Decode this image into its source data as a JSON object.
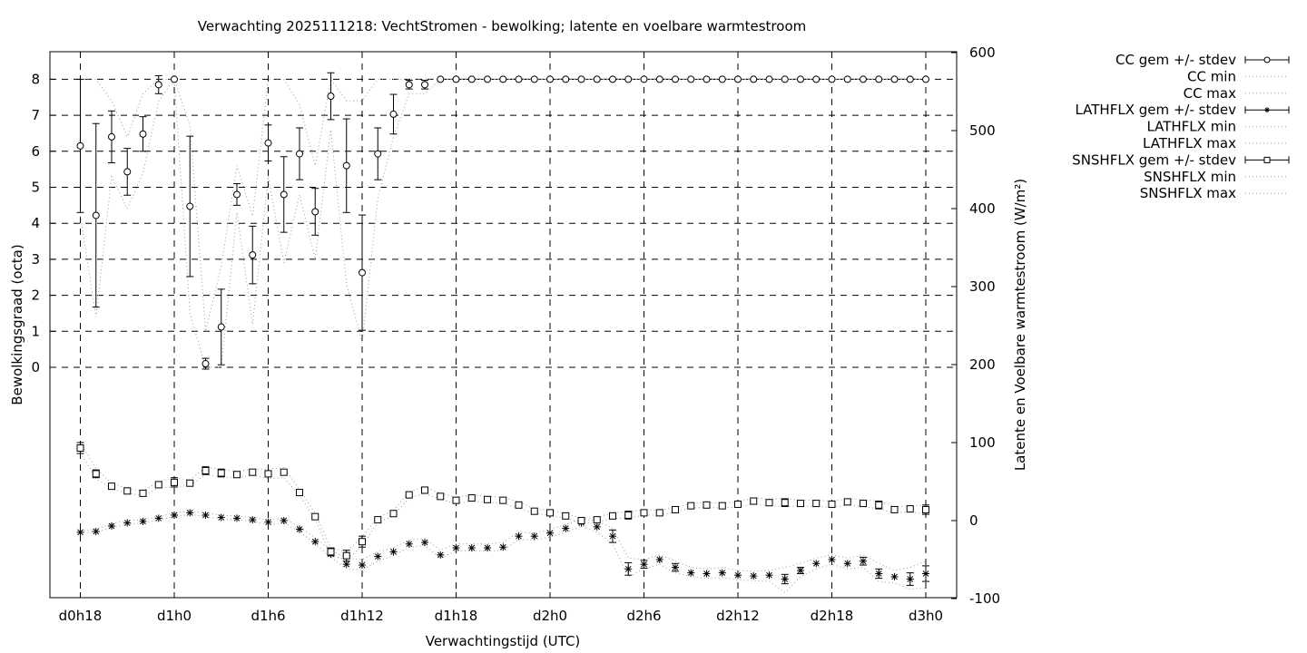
{
  "chart_data": {
    "type": "line",
    "title": "Verwachting 2025111218: VechtStromen - bewolking; latente en voelbare warmtestroom",
    "xlabel": "Verwachtingstijd (UTC)",
    "ylabel": "Bewolkingsgraad (octa)",
    "y2label": "Latente en Voelbare warmtestroom (W/m²)",
    "x_tick_labels": [
      "d0h18",
      "d1h0",
      "d1h6",
      "d1h12",
      "d1h18",
      "d2h0",
      "d2h6",
      "d2h12",
      "d2h18",
      "d3h0"
    ],
    "x_ticks_hours": [
      18,
      24,
      30,
      36,
      42,
      48,
      54,
      60,
      66,
      72
    ],
    "xlim_hours": [
      16,
      74
    ],
    "y_ticks": [
      0,
      1,
      2,
      3,
      4,
      5,
      6,
      7,
      8
    ],
    "y2_ticks": [
      -100,
      0,
      100,
      200,
      300,
      400,
      500,
      600
    ],
    "y2lim": [
      -100,
      600
    ],
    "grid": true,
    "legend_position": "right, outside plot",
    "legend": [
      "CC gem +/- stdev",
      "CC min",
      "CC max",
      "LATHFLX gem +/- stdev",
      "LATHFLX min",
      "LATHFLX max",
      "SNSHFLX gem +/- stdev",
      "SNSHFLX min",
      "SNSHFLX max"
    ],
    "x_hours": [
      18,
      19,
      20,
      21,
      22,
      23,
      24,
      25,
      26,
      27,
      28,
      29,
      30,
      31,
      32,
      33,
      34,
      35,
      36,
      37,
      38,
      39,
      40,
      41,
      42,
      43,
      44,
      45,
      46,
      47,
      48,
      49,
      50,
      51,
      52,
      53,
      54,
      55,
      56,
      57,
      58,
      59,
      60,
      61,
      62,
      63,
      64,
      65,
      66,
      67,
      68,
      69,
      70,
      71,
      72
    ],
    "series": [
      {
        "name": "CC gem +/- stdev",
        "axis": "y",
        "marker": "circle",
        "values": [
          6.15,
          4.22,
          6.4,
          5.43,
          6.48,
          7.85,
          8.0,
          4.47,
          0.1,
          1.12,
          4.8,
          3.12,
          6.23,
          4.8,
          5.93,
          4.32,
          7.53,
          5.6,
          2.63,
          5.93,
          7.03,
          7.85,
          7.85,
          8,
          8,
          8,
          8,
          8,
          8,
          8,
          8,
          8,
          8,
          8,
          8,
          8,
          8,
          8,
          8,
          8,
          8,
          8,
          8,
          8,
          8,
          8,
          8,
          8,
          8,
          8,
          8,
          8,
          8,
          8,
          8
        ],
        "stdev": [
          1.85,
          2.55,
          0.72,
          0.65,
          0.48,
          0.25,
          0.0,
          1.95,
          0.15,
          1.05,
          0.3,
          0.8,
          0.5,
          1.05,
          0.72,
          0.65,
          0.65,
          1.3,
          1.6,
          0.72,
          0.55,
          0.12,
          0.12,
          0,
          0,
          0,
          0,
          0,
          0,
          0,
          0,
          0,
          0,
          0,
          0,
          0,
          0,
          0,
          0,
          0,
          0,
          0,
          0,
          0,
          0,
          0,
          0,
          0,
          0,
          0,
          0,
          0,
          0,
          0,
          0
        ]
      },
      {
        "name": "CC min",
        "axis": "y",
        "values": [
          4.2,
          1.4,
          5.3,
          4.4,
          5.4,
          7.4,
          8,
          1.5,
          0.0,
          0.0,
          4.3,
          1.2,
          5.3,
          2.9,
          4.8,
          3.0,
          6.6,
          2.3,
          0.7,
          4.7,
          6.4,
          7.6,
          7.6,
          8,
          8,
          8,
          8,
          8,
          8,
          8,
          8,
          8,
          8,
          8,
          8,
          8,
          8,
          8,
          8,
          8,
          8,
          8,
          8,
          8,
          8,
          8,
          8,
          8,
          8,
          8,
          8,
          8,
          8,
          8,
          8
        ]
      },
      {
        "name": "CC max",
        "axis": "y",
        "values": [
          8,
          8,
          7.4,
          6.4,
          7.6,
          8,
          8,
          6.7,
          1.0,
          2.8,
          5.6,
          4.2,
          8,
          8,
          7.3,
          5.6,
          8,
          7.4,
          7.4,
          8,
          8,
          8,
          8,
          8,
          8,
          8,
          8,
          8,
          8,
          8,
          8,
          8,
          8,
          8,
          8,
          8,
          8,
          8,
          8,
          8,
          8,
          8,
          8,
          8,
          8,
          8,
          8,
          8,
          8,
          8,
          8,
          8,
          8,
          8,
          8
        ]
      },
      {
        "name": "LATHFLX gem +/- stdev",
        "axis": "y2",
        "marker": "star",
        "values": [
          -15,
          -14,
          -7,
          -3,
          -1,
          3,
          7,
          10,
          7,
          4,
          3,
          1,
          -2,
          0,
          -11,
          -27,
          -43,
          -56,
          -57,
          -46,
          -40,
          -30,
          -28,
          -44,
          -35,
          -35,
          -35,
          -34,
          -20,
          -20,
          -16,
          -10,
          -3,
          -8,
          -20,
          -62,
          -56,
          -50,
          -60,
          -67,
          -68,
          -67,
          -70,
          -71,
          -70,
          -75,
          -64,
          -55,
          -50,
          -55,
          -52,
          -68,
          -72,
          -75,
          -68
        ],
        "stdev": [
          0,
          0,
          0,
          0,
          0,
          0,
          0,
          0,
          0,
          0,
          0,
          0,
          0,
          0,
          0,
          0,
          0,
          0,
          0,
          0,
          0,
          0,
          0,
          0,
          0,
          0,
          0,
          0,
          0,
          0,
          0,
          0,
          0,
          0,
          8,
          8,
          5,
          0,
          5,
          0,
          0,
          0,
          0,
          0,
          0,
          6,
          4,
          0,
          0,
          0,
          5,
          6,
          0,
          8,
          10
        ]
      },
      {
        "name": "LATHFLX min",
        "axis": "y2",
        "values": [
          -15,
          -15,
          -9,
          -5,
          -3,
          1,
          5,
          8,
          5,
          2,
          1,
          -1,
          -5,
          -3,
          -14,
          -30,
          -47,
          -62,
          -63,
          -52,
          -45,
          -34,
          -32,
          -48,
          -39,
          -39,
          -39,
          -38,
          -24,
          -25,
          -21,
          -15,
          -7,
          -15,
          -30,
          -72,
          -62,
          -56,
          -67,
          -72,
          -74,
          -73,
          -76,
          -77,
          -78,
          -92,
          -72,
          -62,
          -56,
          -62,
          -60,
          -78,
          -80,
          -88,
          -86
        ]
      },
      {
        "name": "LATHFLX max",
        "axis": "y2",
        "values": [
          -13,
          -11,
          -4,
          0,
          1,
          5,
          10,
          12,
          10,
          7,
          6,
          4,
          1,
          3,
          -8,
          -22,
          -38,
          -48,
          -50,
          -40,
          -35,
          -25,
          -23,
          -38,
          -30,
          -30,
          -30,
          -28,
          -15,
          -16,
          -11,
          -5,
          2,
          0,
          -10,
          -48,
          -50,
          -44,
          -52,
          -60,
          -62,
          -60,
          -64,
          -65,
          -64,
          -60,
          -55,
          -48,
          -44,
          -48,
          -44,
          -55,
          -64,
          -60,
          -52
        ]
      },
      {
        "name": "SNSHFLX gem +/- stdev",
        "axis": "y2",
        "marker": "square",
        "values": [
          93,
          60,
          44,
          38,
          35,
          46,
          49,
          48,
          64,
          61,
          59,
          62,
          60,
          62,
          36,
          5,
          -40,
          -45,
          -27,
          1,
          9,
          33,
          39,
          31,
          26,
          29,
          27,
          26,
          20,
          12,
          10,
          6,
          0,
          1,
          6,
          7,
          10,
          10,
          14,
          19,
          20,
          19,
          21,
          25,
          23,
          23,
          22,
          22,
          21,
          24,
          22,
          20,
          14,
          15,
          14
        ],
        "stdev": [
          7,
          5,
          0,
          0,
          0,
          0,
          6,
          0,
          5,
          5,
          0,
          0,
          0,
          0,
          0,
          0,
          5,
          7,
          7,
          0,
          0,
          0,
          0,
          0,
          0,
          0,
          0,
          0,
          0,
          0,
          0,
          0,
          0,
          0,
          0,
          5,
          0,
          0,
          0,
          0,
          0,
          0,
          0,
          0,
          0,
          5,
          0,
          0,
          0,
          0,
          0,
          5,
          0,
          0,
          6
        ]
      },
      {
        "name": "SNSHFLX min",
        "axis": "y2",
        "values": [
          87,
          54,
          41,
          35,
          32,
          42,
          43,
          45,
          59,
          56,
          55,
          58,
          54,
          55,
          32,
          2,
          -45,
          -50,
          -33,
          -2,
          6,
          29,
          35,
          27,
          22,
          25,
          23,
          22,
          16,
          9,
          7,
          3,
          -3,
          -2,
          3,
          3,
          7,
          7,
          11,
          16,
          17,
          16,
          18,
          21,
          19,
          18,
          19,
          18,
          17,
          20,
          18,
          15,
          10,
          11,
          8
        ]
      },
      {
        "name": "SNSHFLX max",
        "axis": "y2",
        "values": [
          100,
          66,
          48,
          41,
          38,
          50,
          55,
          52,
          68,
          66,
          63,
          66,
          66,
          68,
          40,
          9,
          -35,
          -40,
          -21,
          4,
          13,
          37,
          43,
          35,
          30,
          33,
          31,
          30,
          24,
          15,
          13,
          9,
          3,
          4,
          10,
          11,
          14,
          13,
          17,
          22,
          23,
          22,
          24,
          29,
          28,
          28,
          26,
          26,
          25,
          28,
          27,
          25,
          18,
          19,
          20
        ]
      }
    ]
  }
}
